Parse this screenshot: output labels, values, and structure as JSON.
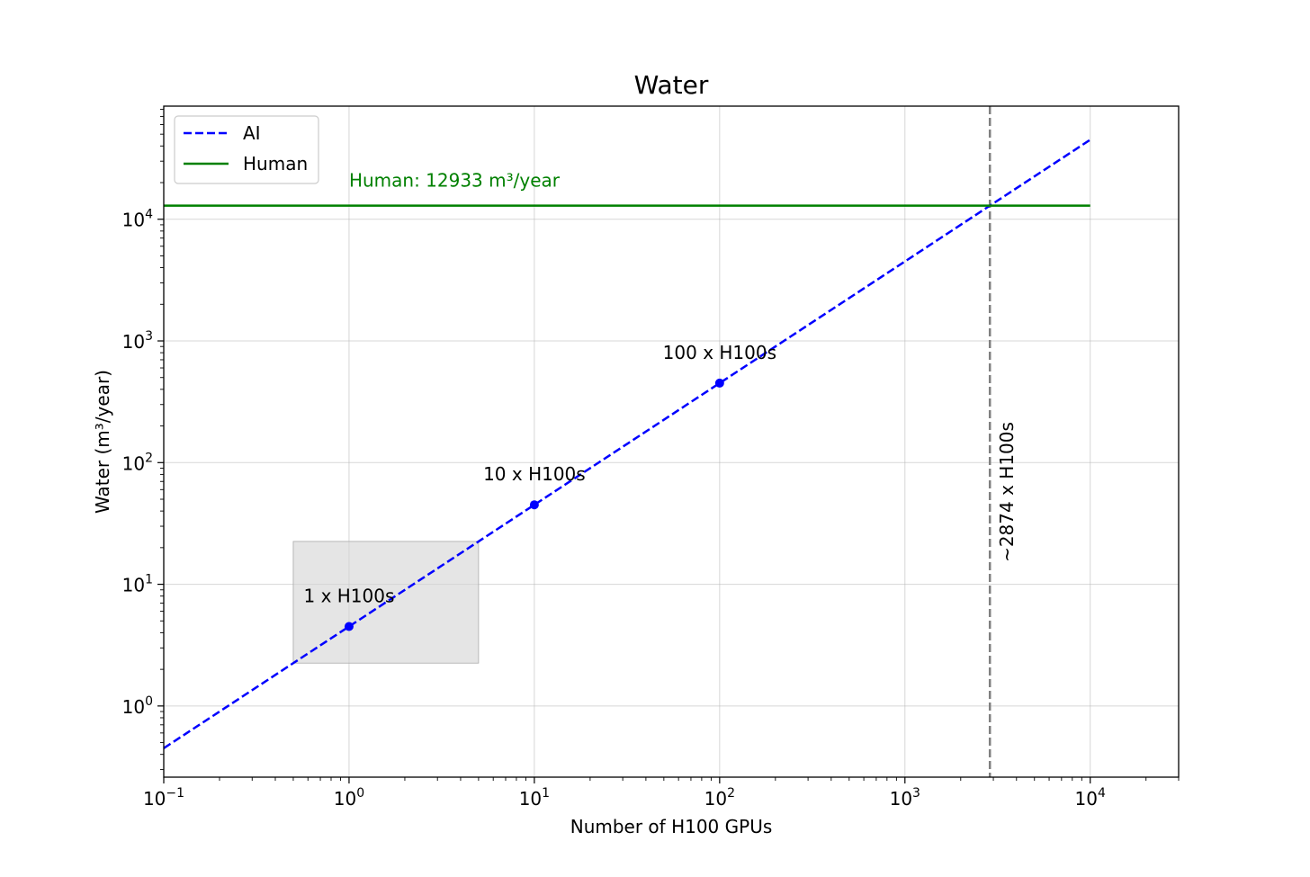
{
  "chart_data": {
    "type": "line",
    "title": "Water",
    "xlabel": "Number of H100 GPUs",
    "ylabel": "Water (m³/year)",
    "xscale": "log",
    "yscale": "log",
    "xlim": [
      0.1,
      30000
    ],
    "ylim": [
      0.26,
      85000
    ],
    "grid": true,
    "legend_position": "top-left",
    "x_ticks": [
      {
        "value": 0.1,
        "base": "10",
        "exp": "−1"
      },
      {
        "value": 1,
        "base": "10",
        "exp": "0"
      },
      {
        "value": 10,
        "base": "10",
        "exp": "1"
      },
      {
        "value": 100,
        "base": "10",
        "exp": "2"
      },
      {
        "value": 1000,
        "base": "10",
        "exp": "3"
      },
      {
        "value": 10000,
        "base": "10",
        "exp": "4"
      }
    ],
    "y_ticks": [
      {
        "value": 1,
        "base": "10",
        "exp": "0"
      },
      {
        "value": 10,
        "base": "10",
        "exp": "1"
      },
      {
        "value": 100,
        "base": "10",
        "exp": "2"
      },
      {
        "value": 1000,
        "base": "10",
        "exp": "3"
      },
      {
        "value": 10000,
        "base": "10",
        "exp": "4"
      }
    ],
    "series": [
      {
        "name": "AI",
        "style": "dashed",
        "color": "#0000ff",
        "x": [
          0.1,
          10000
        ],
        "y": [
          0.45,
          45000
        ]
      },
      {
        "name": "Human",
        "style": "solid",
        "color": "#008000",
        "x": [
          0.1,
          10000
        ],
        "y": [
          12933,
          12933
        ]
      }
    ],
    "points": [
      {
        "x": 1,
        "y": 4.5,
        "label": "1 x H100s"
      },
      {
        "x": 10,
        "y": 45,
        "label": "10 x H100s"
      },
      {
        "x": 100,
        "y": 450,
        "label": "100 x H100s"
      }
    ],
    "highlight_box": {
      "x": [
        0.5,
        5
      ],
      "y": [
        2.25,
        22.5
      ],
      "color": "#d3d3d3"
    },
    "vline": {
      "x": 2874,
      "color": "#808080",
      "style": "dashed",
      "label": "~2874 x H100s"
    },
    "annotations": [
      {
        "text": "Human: 12933 m³/year",
        "color": "#008000"
      }
    ]
  }
}
